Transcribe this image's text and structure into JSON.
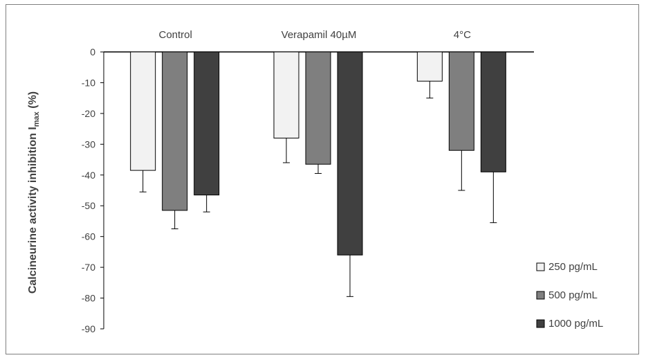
{
  "chart_data": {
    "type": "bar",
    "categories": [
      "Control",
      "Verapamil 40µM",
      "4°C"
    ],
    "ylabel": "Calcineurine  activity  inhibition  I",
    "ylabel_subscript": "max",
    "ylabel_suffix": "  (%)",
    "ylim": [
      -90,
      0
    ],
    "yticks": [
      0,
      -10,
      -20,
      -30,
      -40,
      -50,
      -60,
      -70,
      -80,
      -90
    ],
    "grid": false,
    "legend_position": "bottom-right",
    "series": [
      {
        "name": "250 pg/mL",
        "color": "#f2f2f2",
        "values": [
          -38.5,
          -28,
          -9.5
        ],
        "errors": [
          7,
          8,
          5.5
        ]
      },
      {
        "name": "500 pg/mL",
        "color": "#7f7f7f",
        "values": [
          -51.5,
          -36.5,
          -32
        ],
        "errors": [
          6,
          3,
          13
        ]
      },
      {
        "name": "1000 pg/mL",
        "color": "#404040",
        "values": [
          -46.5,
          -66,
          -39
        ],
        "errors": [
          5.5,
          13.5,
          16.5
        ]
      }
    ]
  }
}
